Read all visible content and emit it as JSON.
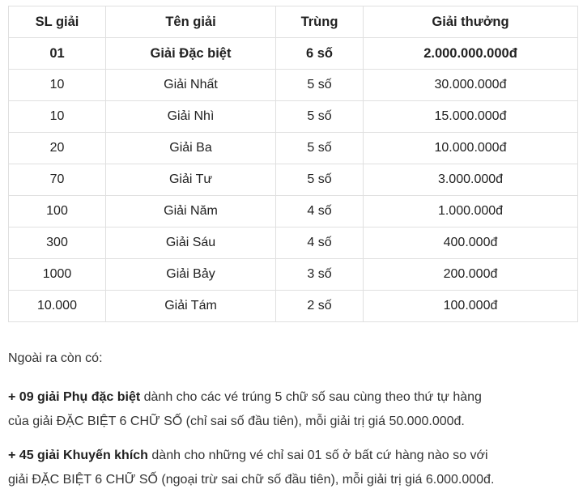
{
  "colors": {
    "background": "#ffffff",
    "border": "#e0e0e0",
    "text": "#212121",
    "notes_text": "#333333"
  },
  "table": {
    "headers": [
      "SL giải",
      "Tên giải",
      "Trùng",
      "Giải thưởng"
    ],
    "rows": [
      {
        "cells": [
          "01",
          "Giải Đặc biệt",
          "6 số",
          "2.000.000.000đ"
        ],
        "bold": true
      },
      {
        "cells": [
          "10",
          "Giải Nhất",
          "5 số",
          "30.000.000đ"
        ],
        "bold": false
      },
      {
        "cells": [
          "10",
          "Giải Nhì",
          "5 số",
          "15.000.000đ"
        ],
        "bold": false
      },
      {
        "cells": [
          "20",
          "Giải Ba",
          "5 số",
          "10.000.000đ"
        ],
        "bold": false
      },
      {
        "cells": [
          "70",
          "Giải Tư",
          "5 số",
          "3.000.000đ"
        ],
        "bold": false
      },
      {
        "cells": [
          "100",
          "Giải Năm",
          "4 số",
          "1.000.000đ"
        ],
        "bold": false
      },
      {
        "cells": [
          "300",
          "Giải Sáu",
          "4 số",
          "400.000đ"
        ],
        "bold": false
      },
      {
        "cells": [
          "1000",
          "Giải Bảy",
          "3 số",
          "200.000đ"
        ],
        "bold": false
      },
      {
        "cells": [
          "10.000",
          "Giải Tám",
          "2 số",
          "100.000đ"
        ],
        "bold": false
      }
    ]
  },
  "notes": {
    "intro": "Ngoài ra còn có:",
    "items": [
      {
        "bold": "+ 09 giải Phụ đặc biệt",
        "rest": " dành cho các vé trúng 5 chữ số sau cùng theo thứ tự hàng\ncủa giải ĐẶC BIỆT 6 CHỮ SỐ (chỉ sai số đầu tiên), mỗi giải trị giá 50.000.000đ."
      },
      {
        "bold": "+ 45 giải Khuyến khích",
        "rest": " dành cho những vé chỉ sai 01 số ở bất cứ hàng nào so với\ngiải ĐẶC BIỆT 6 CHỮ SỐ (ngoại trừ sai chữ số đầu tiên), mỗi giải trị giá 6.000.000đ."
      }
    ]
  }
}
